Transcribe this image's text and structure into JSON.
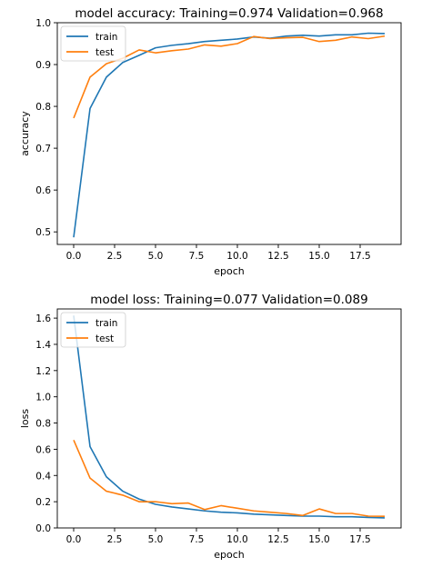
{
  "chart_data": [
    {
      "type": "line",
      "title": "model accuracy:  Training=0.974 Validation=0.968",
      "xlabel": "epoch",
      "ylabel": "accuracy",
      "xlim": [
        -1,
        20
      ],
      "ylim": [
        0.47,
        1.0
      ],
      "xticks": [
        0,
        2.5,
        5,
        7.5,
        10,
        12.5,
        15,
        17.5
      ],
      "xtick_labels": [
        "0.0",
        "2.5",
        "5.0",
        "7.5",
        "10.0",
        "12.5",
        "15.0",
        "17.5"
      ],
      "yticks": [
        0.5,
        0.6,
        0.7,
        0.8,
        0.9,
        1.0
      ],
      "ytick_labels": [
        "0.5",
        "0.6",
        "0.7",
        "0.8",
        "0.9",
        "1.0"
      ],
      "grid": false,
      "legend_position": "top-left",
      "x": [
        0,
        1,
        2,
        3,
        4,
        5,
        6,
        7,
        8,
        9,
        10,
        11,
        12,
        13,
        14,
        15,
        16,
        17,
        18,
        19
      ],
      "series": [
        {
          "name": "train",
          "color": "#1f77b4",
          "values": [
            0.487,
            0.795,
            0.87,
            0.905,
            0.922,
            0.94,
            0.946,
            0.95,
            0.955,
            0.958,
            0.961,
            0.966,
            0.963,
            0.968,
            0.97,
            0.968,
            0.971,
            0.971,
            0.975,
            0.974
          ]
        },
        {
          "name": "test",
          "color": "#ff7f0e",
          "values": [
            0.772,
            0.87,
            0.902,
            0.915,
            0.935,
            0.928,
            0.933,
            0.937,
            0.947,
            0.944,
            0.95,
            0.967,
            0.962,
            0.964,
            0.965,
            0.955,
            0.958,
            0.966,
            0.962,
            0.968
          ]
        }
      ]
    },
    {
      "type": "line",
      "title": "model loss:  Training=0.077 Validation=0.089",
      "xlabel": "epoch",
      "ylabel": "loss",
      "xlim": [
        -1,
        20
      ],
      "ylim": [
        0.0,
        1.67
      ],
      "xticks": [
        0,
        2.5,
        5,
        7.5,
        10,
        12.5,
        15,
        17.5
      ],
      "xtick_labels": [
        "0.0",
        "2.5",
        "5.0",
        "7.5",
        "10.0",
        "12.5",
        "15.0",
        "17.5"
      ],
      "yticks": [
        0.0,
        0.2,
        0.4,
        0.6,
        0.8,
        1.0,
        1.2,
        1.4,
        1.6
      ],
      "ytick_labels": [
        "0.0",
        "0.2",
        "0.4",
        "0.6",
        "0.8",
        "1.0",
        "1.2",
        "1.4",
        "1.6"
      ],
      "grid": false,
      "legend_position": "top-left",
      "x": [
        0,
        1,
        2,
        3,
        4,
        5,
        6,
        7,
        8,
        9,
        10,
        11,
        12,
        13,
        14,
        15,
        16,
        17,
        18,
        19
      ],
      "series": [
        {
          "name": "train",
          "color": "#1f77b4",
          "values": [
            1.62,
            0.62,
            0.39,
            0.28,
            0.22,
            0.18,
            0.16,
            0.145,
            0.13,
            0.12,
            0.115,
            0.105,
            0.1,
            0.095,
            0.09,
            0.09,
            0.085,
            0.085,
            0.08,
            0.077
          ]
        },
        {
          "name": "test",
          "color": "#ff7f0e",
          "values": [
            0.67,
            0.38,
            0.28,
            0.25,
            0.2,
            0.2,
            0.185,
            0.19,
            0.14,
            0.17,
            0.15,
            0.13,
            0.12,
            0.11,
            0.095,
            0.145,
            0.11,
            0.11,
            0.09,
            0.089
          ]
        }
      ]
    }
  ]
}
